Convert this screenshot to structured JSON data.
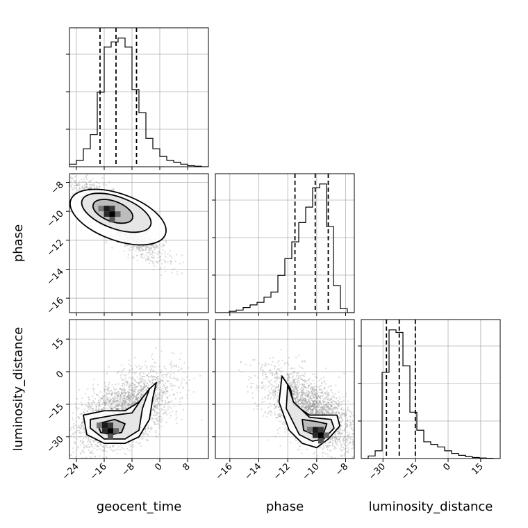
{
  "chart_data": {
    "type": "corner",
    "parameters": [
      "geocent_time",
      "phase",
      "luminosity_distance"
    ],
    "colors": {
      "line": "#000000",
      "grid": "#b0b0b0",
      "scatter": "#888888",
      "hist2d": "#000000"
    },
    "axes": {
      "geocent_time": {
        "label": "geocent_time",
        "range": [
          -26,
          14
        ],
        "ticks": [
          -24,
          -16,
          -8,
          0,
          8
        ],
        "tick_labels": [
          "−24",
          "−16",
          "−8",
          "0",
          "8"
        ]
      },
      "phase": {
        "label": "phase",
        "range": [
          -17,
          -7.4
        ],
        "ticks": [
          -16,
          -14,
          -12,
          -10,
          -8
        ],
        "tick_labels": [
          "−16",
          "−14",
          "−12",
          "−10",
          "−8"
        ]
      },
      "luminosity_distance": {
        "label": "luminosity_distance",
        "range": [
          -40,
          24
        ],
        "ticks": [
          -30,
          -15,
          0,
          15
        ],
        "tick_labels": [
          "−30",
          "−15",
          "0",
          "15"
        ]
      }
    },
    "marginals": [
      {
        "parameter": "geocent_time",
        "bin_edges": [
          -26,
          -24,
          -22,
          -20,
          -18,
          -16,
          -14,
          -12,
          -10,
          -8,
          -6,
          -4,
          -2,
          0,
          2,
          4,
          6,
          8,
          10,
          12,
          14
        ],
        "counts": [
          0.02,
          0.05,
          0.14,
          0.25,
          0.58,
          0.93,
          0.97,
          1.0,
          0.93,
          0.6,
          0.42,
          0.22,
          0.14,
          0.08,
          0.05,
          0.035,
          0.02,
          0.008,
          0.004,
          0.0
        ],
        "quantiles": [
          -17.2,
          -12.6,
          -6.7
        ]
      },
      {
        "parameter": "phase",
        "bin_edges": [
          -17,
          -16.52,
          -16.04,
          -15.56,
          -15.08,
          -14.6,
          -14.12,
          -13.64,
          -13.16,
          -12.68,
          -12.2,
          -11.72,
          -11.24,
          -10.76,
          -10.28,
          -9.8,
          -9.32,
          -8.84,
          -8.36,
          -7.88,
          -7.4
        ],
        "counts": [
          0.0,
          0.0,
          0.01,
          0.02,
          0.04,
          0.06,
          0.08,
          0.12,
          0.16,
          0.29,
          0.42,
          0.55,
          0.7,
          0.82,
          0.97,
          1.0,
          0.67,
          0.21,
          0.03,
          0.0
        ],
        "quantiles": [
          -11.5,
          -10.1,
          -9.2
        ]
      },
      {
        "parameter": "luminosity_distance",
        "bin_edges": [
          -40,
          -36.8,
          -33.6,
          -30.4,
          -27.2,
          -24,
          -20.8,
          -17.6,
          -14.4,
          -11.2,
          -8,
          -4.8,
          -1.6,
          1.6,
          4.8,
          8,
          11.2,
          14.4,
          17.6,
          20.8,
          24
        ],
        "counts": [
          0.0,
          0.02,
          0.06,
          0.67,
          1.0,
          0.98,
          0.72,
          0.36,
          0.22,
          0.13,
          0.11,
          0.09,
          0.06,
          0.04,
          0.025,
          0.015,
          0.008,
          0.004,
          0.002,
          0.0
        ],
        "quantiles": [
          -28.4,
          -22.5,
          -15.1
        ]
      }
    ],
    "joint": [
      {
        "x": "geocent_time",
        "y": "phase",
        "scatter": {
          "mean": [
            -12.5,
            -10.5
          ],
          "std": [
            6.0,
            1.3
          ],
          "corr": -0.85,
          "n": 2600
        },
        "density_peak": [
          -14.5,
          -10.0
        ],
        "contours": [
          {
            "level": "outer",
            "center": [
              -12.0,
              -10.4
            ],
            "semi_axes": [
              14.5,
              1.6
            ],
            "angle_deg": -20
          },
          {
            "level": "middle",
            "center": [
              -12.5,
              -10.1
            ],
            "semi_axes": [
              10.5,
              1.1
            ],
            "angle_deg": -20
          },
          {
            "level": "inner",
            "center": [
              -13.5,
              -10.0
            ],
            "semi_axes": [
              6.0,
              0.7
            ],
            "angle_deg": -20
          }
        ]
      },
      {
        "x": "geocent_time",
        "y": "luminosity_distance",
        "scatter": {
          "mean": [
            -10.0,
            -18.0
          ],
          "std": [
            7.0,
            9.0
          ],
          "corr": 0.55,
          "n": 2600
        },
        "density_peak": [
          -15.0,
          -26.0
        ],
        "contours": [
          {
            "level": "outer",
            "path": [
              [
                -22,
                -20
              ],
              [
                -16,
                -18
              ],
              [
                -10,
                -18
              ],
              [
                -6,
                -14
              ],
              [
                -3,
                -8
              ],
              [
                -1,
                -5
              ],
              [
                -2,
                -12
              ],
              [
                -3,
                -22
              ],
              [
                -6,
                -30
              ],
              [
                -10,
                -33
              ],
              [
                -16,
                -33
              ],
              [
                -21,
                -29
              ]
            ]
          },
          {
            "level": "middle",
            "path": [
              [
                -20,
                -22
              ],
              [
                -13,
                -20
              ],
              [
                -8,
                -19
              ],
              [
                -5,
                -12
              ],
              [
                -3,
                -8
              ],
              [
                -5,
                -17
              ],
              [
                -6,
                -27
              ],
              [
                -10,
                -31
              ],
              [
                -16,
                -31
              ],
              [
                -20,
                -26
              ]
            ]
          },
          {
            "level": "inner",
            "path": [
              [
                -18,
                -24
              ],
              [
                -13,
                -22
              ],
              [
                -10,
                -24
              ],
              [
                -11,
                -28
              ],
              [
                -14,
                -29
              ],
              [
                -17,
                -28
              ]
            ]
          }
        ]
      },
      {
        "x": "phase",
        "y": "luminosity_distance",
        "scatter": {
          "mean": [
            -10.5,
            -18.0
          ],
          "std": [
            1.6,
            9.0
          ],
          "corr": -0.6,
          "n": 2600
        },
        "density_peak": [
          -9.9,
          -28.0
        ],
        "contours": [
          {
            "level": "outer",
            "path": [
              [
                -12.4,
                -2
              ],
              [
                -11.8,
                -8
              ],
              [
                -11.6,
                -15
              ],
              [
                -10.5,
                -20
              ],
              [
                -8.6,
                -20
              ],
              [
                -8.4,
                -25
              ],
              [
                -9.2,
                -31
              ],
              [
                -10.0,
                -35
              ],
              [
                -11.0,
                -33
              ],
              [
                -11.9,
                -27
              ],
              [
                -12.6,
                -14
              ]
            ]
          },
          {
            "level": "middle",
            "path": [
              [
                -12.0,
                -6
              ],
              [
                -11.6,
                -14
              ],
              [
                -10.5,
                -21
              ],
              [
                -9.0,
                -22
              ],
              [
                -8.8,
                -26
              ],
              [
                -9.5,
                -31
              ],
              [
                -10.3,
                -32
              ],
              [
                -11.2,
                -29
              ],
              [
                -12.1,
                -17
              ]
            ]
          },
          {
            "level": "inner",
            "path": [
              [
                -11.0,
                -22
              ],
              [
                -10.0,
                -23
              ],
              [
                -9.3,
                -24
              ],
              [
                -9.5,
                -28
              ],
              [
                -10.2,
                -29
              ],
              [
                -10.9,
                -27
              ]
            ]
          }
        ]
      }
    ]
  }
}
